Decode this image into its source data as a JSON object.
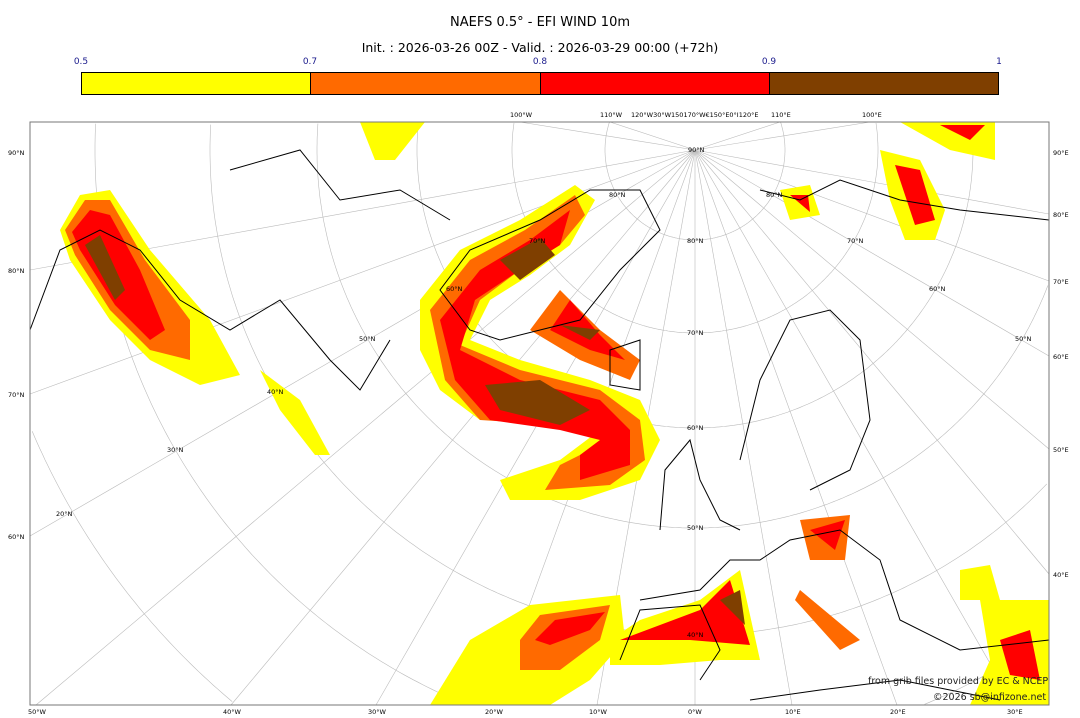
{
  "title": "NAEFS 0.5° - EFI WIND 10m",
  "subtitle": "Init. : 2026-03-26 00Z - Valid. : 2026-03-29 00:00 (+72h)",
  "colorbar": {
    "ticks": [
      "0.5",
      "0.7",
      "0.8",
      "0.9",
      "1"
    ],
    "colors": [
      "#ffff00",
      "#ff6a00",
      "#ff0000",
      "#7f3f00"
    ]
  },
  "graticule": {
    "left": [
      "90°N",
      "80°N",
      "70°N",
      "60°N"
    ],
    "right": [
      "90°E",
      "80°E",
      "70°E",
      "60°E",
      "50°E",
      "40°E"
    ],
    "bottom": [
      "50°W",
      "40°W",
      "30°W",
      "20°W",
      "10°W",
      "0°W",
      "10°E",
      "20°E",
      "30°E"
    ],
    "top": [
      "100°W",
      "110°W",
      "120°W30°W150170°W€150°E0°I120°E",
      "110°E",
      "100°E"
    ],
    "inner": [
      "90°N",
      "80°N",
      "80°N",
      "70°N",
      "70°N",
      "60°N",
      "60°N",
      "50°N",
      "50°N",
      "40°N",
      "30°N",
      "20°N",
      "80°N",
      "70°N",
      "60°N",
      "50°N",
      "40°N"
    ]
  },
  "credits": {
    "source": "from grib files provided by EC & NCEP",
    "copyright": "©2026 sb@infizone.net"
  }
}
